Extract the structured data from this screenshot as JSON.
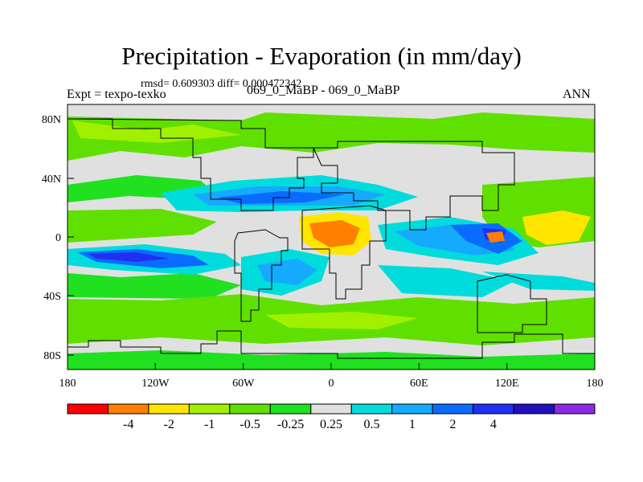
{
  "title": "Precipitation - Evaporation (in mm/day)",
  "subtitle": "rmsd= 0.609303 diff= 0.000472342",
  "left_label": "Expt = texpo-texko",
  "center_label": "069_0_MaBP - 069_0_MaBP",
  "right_label": "ANN",
  "axes": {
    "lon_labels": [
      "180",
      "120W",
      "60W",
      "0",
      "60E",
      "120E",
      "180"
    ],
    "lat_labels": [
      "80N",
      "40N",
      "0",
      "40S",
      "80S"
    ]
  },
  "colorbar": {
    "colors": [
      "#ff0000",
      "#ff8000",
      "#ffe600",
      "#a0f000",
      "#60e000",
      "#20e020",
      "#e0e0e0",
      "#00dcdc",
      "#16aaff",
      "#0a6cff",
      "#2030f0",
      "#2010c0",
      "#8c28e6"
    ],
    "labels": [
      "-4",
      "-2",
      "-1",
      "-0.5",
      "-0.25",
      "0.25",
      "0.5",
      "1",
      "2",
      "4"
    ]
  },
  "chart_data": {
    "type": "heatmap",
    "title": "Precipitation - Evaporation (in mm/day)",
    "units": "mm/day",
    "x_range": [
      -180,
      180
    ],
    "y_range": [
      -90,
      90
    ],
    "x_ticks": [
      -180,
      -120,
      -60,
      0,
      60,
      120,
      180
    ],
    "y_ticks": [
      80,
      40,
      0,
      -40,
      -80
    ],
    "levels": [
      -4,
      -2,
      -1,
      -0.5,
      -0.25,
      0.25,
      0.5,
      1,
      2,
      4
    ],
    "diff": 0.000472342,
    "rmsd": 0.609303
  }
}
